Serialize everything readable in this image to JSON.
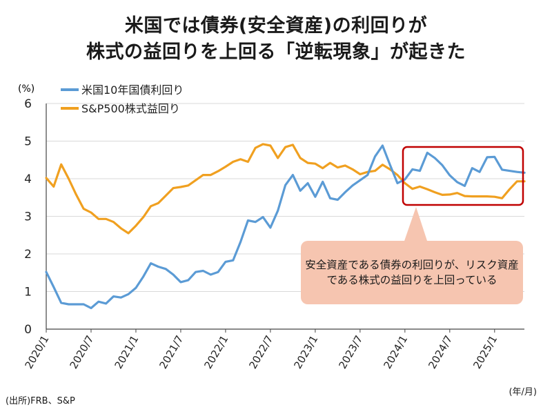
{
  "title": {
    "line1": "米国では債券(安全資産)の利回りが",
    "line2": "株式の益回りを上回る「逆転現象」が起きた"
  },
  "callout": {
    "text": "安全資産である債券の利回りが、リスク資産である株式の益回りを上回っている"
  },
  "source": "(出所)FRB、S&P",
  "colors": {
    "treasury": "#5b9bd5",
    "sp500": "#f0a020",
    "highlight": "#c00000",
    "callout_bg": "#f6c5b0"
  },
  "chart_data": {
    "type": "line",
    "y_unit_label": "(%)",
    "x_unit_label": "(年/月)",
    "ylim": [
      0,
      6
    ],
    "yticks": [
      "0",
      "1",
      "2",
      "3",
      "4",
      "5",
      "6"
    ],
    "x_tick_labels": [
      "2020/1",
      "2020/7",
      "2021/1",
      "2021/7",
      "2022/1",
      "2022/7",
      "2023/1",
      "2023/7",
      "2024/1",
      "2024/7",
      "2025/1"
    ],
    "x": [
      "2020/1",
      "2020/2",
      "2020/3",
      "2020/4",
      "2020/5",
      "2020/6",
      "2020/7",
      "2020/8",
      "2020/9",
      "2020/10",
      "2020/11",
      "2020/12",
      "2021/1",
      "2021/2",
      "2021/3",
      "2021/4",
      "2021/5",
      "2021/6",
      "2021/7",
      "2021/8",
      "2021/9",
      "2021/10",
      "2021/11",
      "2021/12",
      "2022/1",
      "2022/2",
      "2022/3",
      "2022/4",
      "2022/5",
      "2022/6",
      "2022/7",
      "2022/8",
      "2022/9",
      "2022/10",
      "2022/11",
      "2022/12",
      "2023/1",
      "2023/2",
      "2023/3",
      "2023/4",
      "2023/5",
      "2023/6",
      "2023/7",
      "2023/8",
      "2023/9",
      "2023/10",
      "2023/11",
      "2023/12",
      "2024/1",
      "2024/2",
      "2024/3",
      "2024/4",
      "2024/5",
      "2024/6",
      "2024/7",
      "2024/8",
      "2024/9",
      "2024/10",
      "2024/11",
      "2024/12",
      "2025/1",
      "2025/2",
      "2025/3",
      "2025/4",
      "2025/5"
    ],
    "series": [
      {
        "name": "米国10年国債利回り",
        "values": [
          1.52,
          1.12,
          0.7,
          0.66,
          0.66,
          0.66,
          0.56,
          0.73,
          0.68,
          0.87,
          0.84,
          0.93,
          1.1,
          1.4,
          1.75,
          1.66,
          1.6,
          1.45,
          1.25,
          1.3,
          1.52,
          1.55,
          1.45,
          1.52,
          1.79,
          1.83,
          2.32,
          2.89,
          2.85,
          2.98,
          2.7,
          3.15,
          3.83,
          4.1,
          3.68,
          3.88,
          3.52,
          3.92,
          3.48,
          3.44,
          3.64,
          3.82,
          3.96,
          4.1,
          4.59,
          4.88,
          4.37,
          3.88,
          3.98,
          4.25,
          4.21,
          4.69,
          4.55,
          4.36,
          4.09,
          3.91,
          3.81,
          4.28,
          4.18,
          4.57,
          4.58,
          4.24,
          4.21,
          4.18,
          4.16
        ]
      },
      {
        "name": "S&P500株式益回り",
        "values": [
          4.02,
          3.79,
          4.38,
          4.0,
          3.58,
          3.2,
          3.1,
          2.93,
          2.93,
          2.85,
          2.68,
          2.55,
          2.75,
          2.98,
          3.27,
          3.35,
          3.55,
          3.75,
          3.78,
          3.82,
          3.96,
          4.1,
          4.1,
          4.2,
          4.32,
          4.45,
          4.52,
          4.45,
          4.82,
          4.92,
          4.88,
          4.55,
          4.84,
          4.9,
          4.55,
          4.42,
          4.4,
          4.28,
          4.42,
          4.3,
          4.35,
          4.25,
          4.12,
          4.18,
          4.21,
          4.37,
          4.25,
          4.1,
          3.88,
          3.73,
          3.79,
          3.72,
          3.64,
          3.57,
          3.58,
          3.62,
          3.54,
          3.53,
          3.53,
          3.53,
          3.52,
          3.48,
          3.72,
          3.93,
          3.93
        ]
      }
    ]
  }
}
